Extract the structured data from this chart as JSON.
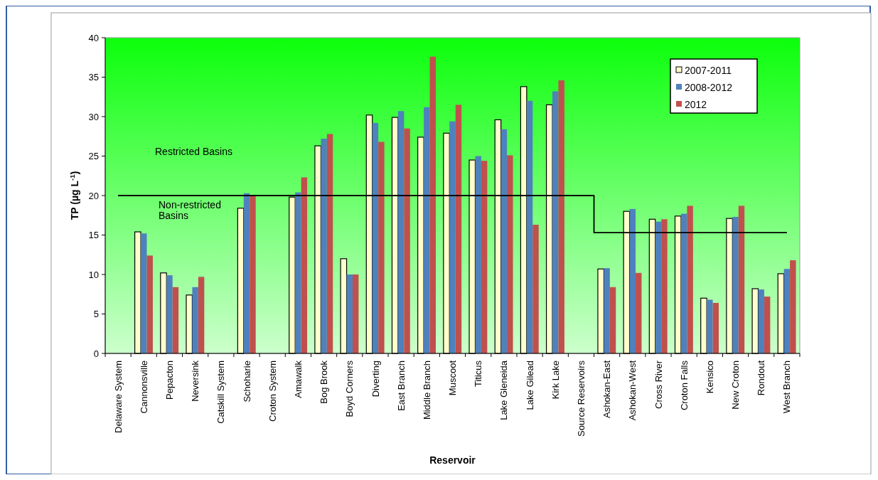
{
  "chart_data": {
    "type": "bar",
    "xlabel": "Reservoir",
    "ylabel": "TP (µg L$^{-1}$)",
    "categories": [
      "Delaware System",
      "Cannonsville",
      "Pepacton",
      "Neversink",
      "Catskill System",
      "Schoharie",
      "Croton System",
      "Amawalk",
      "Bog Brook",
      "Boyd Corners",
      "Diverting",
      "East Branch",
      "Middle Branch",
      "Muscoot",
      "Titicus",
      "Lake Gleneida",
      "Lake Gilead",
      "Kirk Lake",
      "Source Reservoirs",
      "Ashokan-East",
      "Ashokan-West",
      "Cross River",
      "Croton Falls",
      "Kensico",
      "New Croton",
      "Rondout",
      "West Branch"
    ],
    "series": [
      {
        "name": "2007-2011",
        "color": "#ffffcc",
        "values": [
          null,
          15.4,
          10.2,
          7.4,
          null,
          18.4,
          null,
          19.8,
          26.3,
          12.0,
          30.2,
          29.9,
          27.4,
          27.9,
          24.5,
          29.6,
          33.8,
          31.5,
          null,
          10.7,
          18.0,
          17.0,
          17.4,
          7.0,
          17.1,
          8.2,
          10.1
        ]
      },
      {
        "name": "2008-2012",
        "color": "#4f81bd",
        "values": [
          null,
          15.2,
          9.9,
          8.4,
          null,
          20.3,
          null,
          20.4,
          27.2,
          10.0,
          29.2,
          30.7,
          31.2,
          29.4,
          25.0,
          28.4,
          32.0,
          33.2,
          null,
          10.8,
          18.3,
          16.7,
          17.7,
          6.8,
          17.3,
          8.1,
          10.7
        ]
      },
      {
        "name": "2012",
        "color": "#c0504d",
        "values": [
          null,
          12.4,
          8.4,
          9.7,
          null,
          20.0,
          null,
          22.3,
          27.8,
          10.0,
          26.8,
          28.5,
          37.6,
          31.5,
          24.4,
          25.1,
          16.3,
          34.6,
          null,
          8.4,
          10.2,
          17.0,
          18.7,
          6.4,
          18.7,
          7.2,
          11.8
        ]
      },
      {
        "type": "step",
        "color": "#000000",
        "values": [
          20,
          20,
          20,
          20,
          20,
          20,
          20,
          20,
          20,
          20,
          20,
          20,
          20,
          20,
          20,
          20,
          20,
          20,
          20,
          15.3,
          15.3,
          15.3,
          15.3,
          15.3,
          15.3,
          15.3,
          15.3
        ]
      }
    ],
    "annotations": [
      "Restricted Basins",
      "Non-restricted\nBasins"
    ],
    "ylim": [
      0,
      40
    ],
    "yticks": [
      0,
      5,
      10,
      15,
      20,
      25,
      30,
      35,
      40
    ],
    "grid": false,
    "legend": "top right"
  }
}
